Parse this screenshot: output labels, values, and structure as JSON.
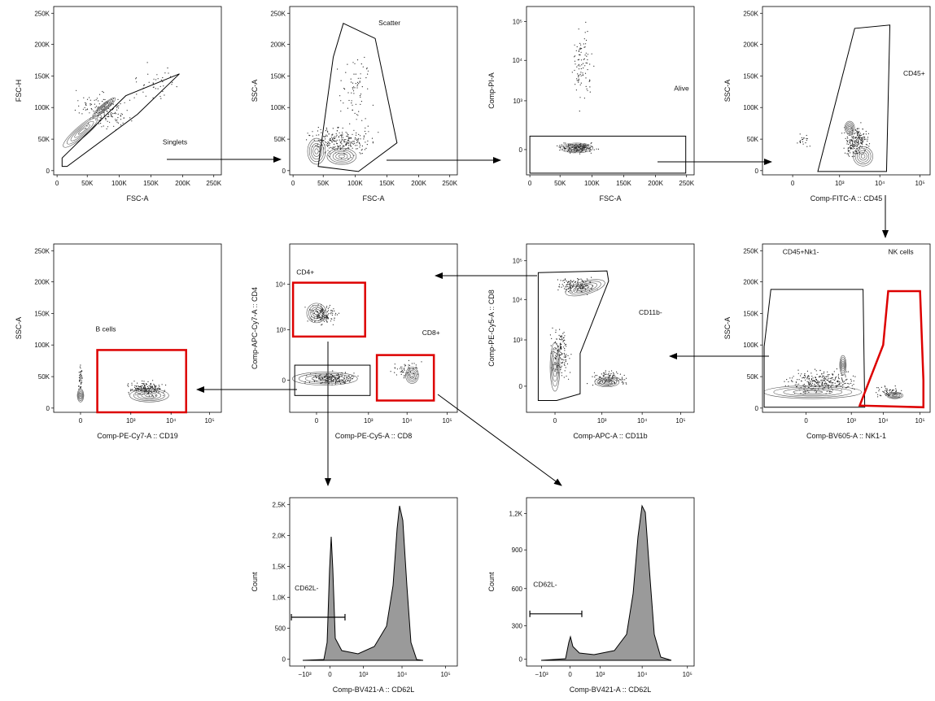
{
  "panels": [
    {
      "y_label": "FSC-H",
      "x_label": "FSC-A",
      "y_ticks": [
        "0",
        "50K",
        "100K",
        "150K",
        "200K",
        "250K"
      ],
      "x_ticks": [
        "0",
        "50K",
        "100K",
        "150K",
        "200K",
        "250K"
      ],
      "gates": [
        "Singlets"
      ]
    },
    {
      "y_label": "SSC-A",
      "x_label": "FSC-A",
      "y_ticks": [
        "0",
        "50K",
        "100K",
        "150K",
        "200K",
        "250K"
      ],
      "x_ticks": [
        "0",
        "50K",
        "100K",
        "150K",
        "200K",
        "250K"
      ],
      "gates": [
        "Scatter"
      ]
    },
    {
      "y_label": "Comp-PI-A",
      "x_label": "FSC-A",
      "y_ticks": [
        "0",
        "10³",
        "10⁴",
        "10⁵"
      ],
      "x_ticks": [
        "0",
        "50K",
        "100K",
        "150K",
        "200K",
        "250K"
      ],
      "gates": [
        "Alive"
      ]
    },
    {
      "y_label": "SSC-A",
      "x_label": "Comp-FITC-A :: CD45",
      "y_ticks": [
        "0",
        "50K",
        "100K",
        "150K",
        "200K",
        "250K"
      ],
      "x_ticks": [
        "0",
        "10³",
        "10⁴",
        "10⁵"
      ],
      "gates": [
        "CD45+"
      ]
    },
    {
      "y_label": "SSC-A",
      "x_label": "Comp-PE-Cy7-A :: CD19",
      "y_ticks": [
        "0",
        "50K",
        "100K",
        "150K",
        "200K",
        "250K"
      ],
      "x_ticks": [
        "0",
        "10³",
        "10⁴",
        "10⁵"
      ],
      "gates": [
        "B cells"
      ]
    },
    {
      "y_label": "Comp-APC-Cy7-A :: CD4",
      "x_label": "Comp-PE-Cy5-A :: CD8",
      "y_ticks": [
        "0",
        "10³",
        "10⁴"
      ],
      "x_ticks": [
        "0",
        "10³",
        "10⁴",
        "10⁵"
      ],
      "gates": [
        "CD4+",
        "CD8+"
      ]
    },
    {
      "y_label": "Comp-PE-Cy5-A :: CD8",
      "x_label": "Comp-APC-A :: CD11b",
      "y_ticks": [
        "0",
        "10³",
        "10⁴",
        "10⁵"
      ],
      "x_ticks": [
        "0",
        "10³",
        "10⁴",
        "10⁵"
      ],
      "gates": [
        "CD11b-"
      ]
    },
    {
      "y_label": "SSC-A",
      "x_label": "Comp-BV605-A :: NK1-1",
      "y_ticks": [
        "0",
        "50K",
        "100K",
        "150K",
        "200K",
        "250K"
      ],
      "x_ticks": [
        "0",
        "10³",
        "10⁴",
        "10⁵"
      ],
      "gates": [
        "CD45+Nk1-",
        "NK cells"
      ]
    },
    {
      "y_label": "Count",
      "x_label": "Comp-BV421-A :: CD62L",
      "y_ticks": [
        "0",
        "500",
        "1,0K",
        "1,5K",
        "2,0K",
        "2,5K"
      ],
      "x_ticks": [
        "−10³",
        "0",
        "10³",
        "10⁴",
        "10⁵"
      ],
      "gates": [
        "CD62L-"
      ]
    },
    {
      "y_label": "Count",
      "x_label": "Comp-BV421-A :: CD62L",
      "y_ticks": [
        "0",
        "300",
        "600",
        "900",
        "1,2K"
      ],
      "x_ticks": [
        "−10³",
        "0",
        "10³",
        "10⁴",
        "10⁵"
      ],
      "gates": [
        "CD62L-"
      ]
    }
  ]
}
